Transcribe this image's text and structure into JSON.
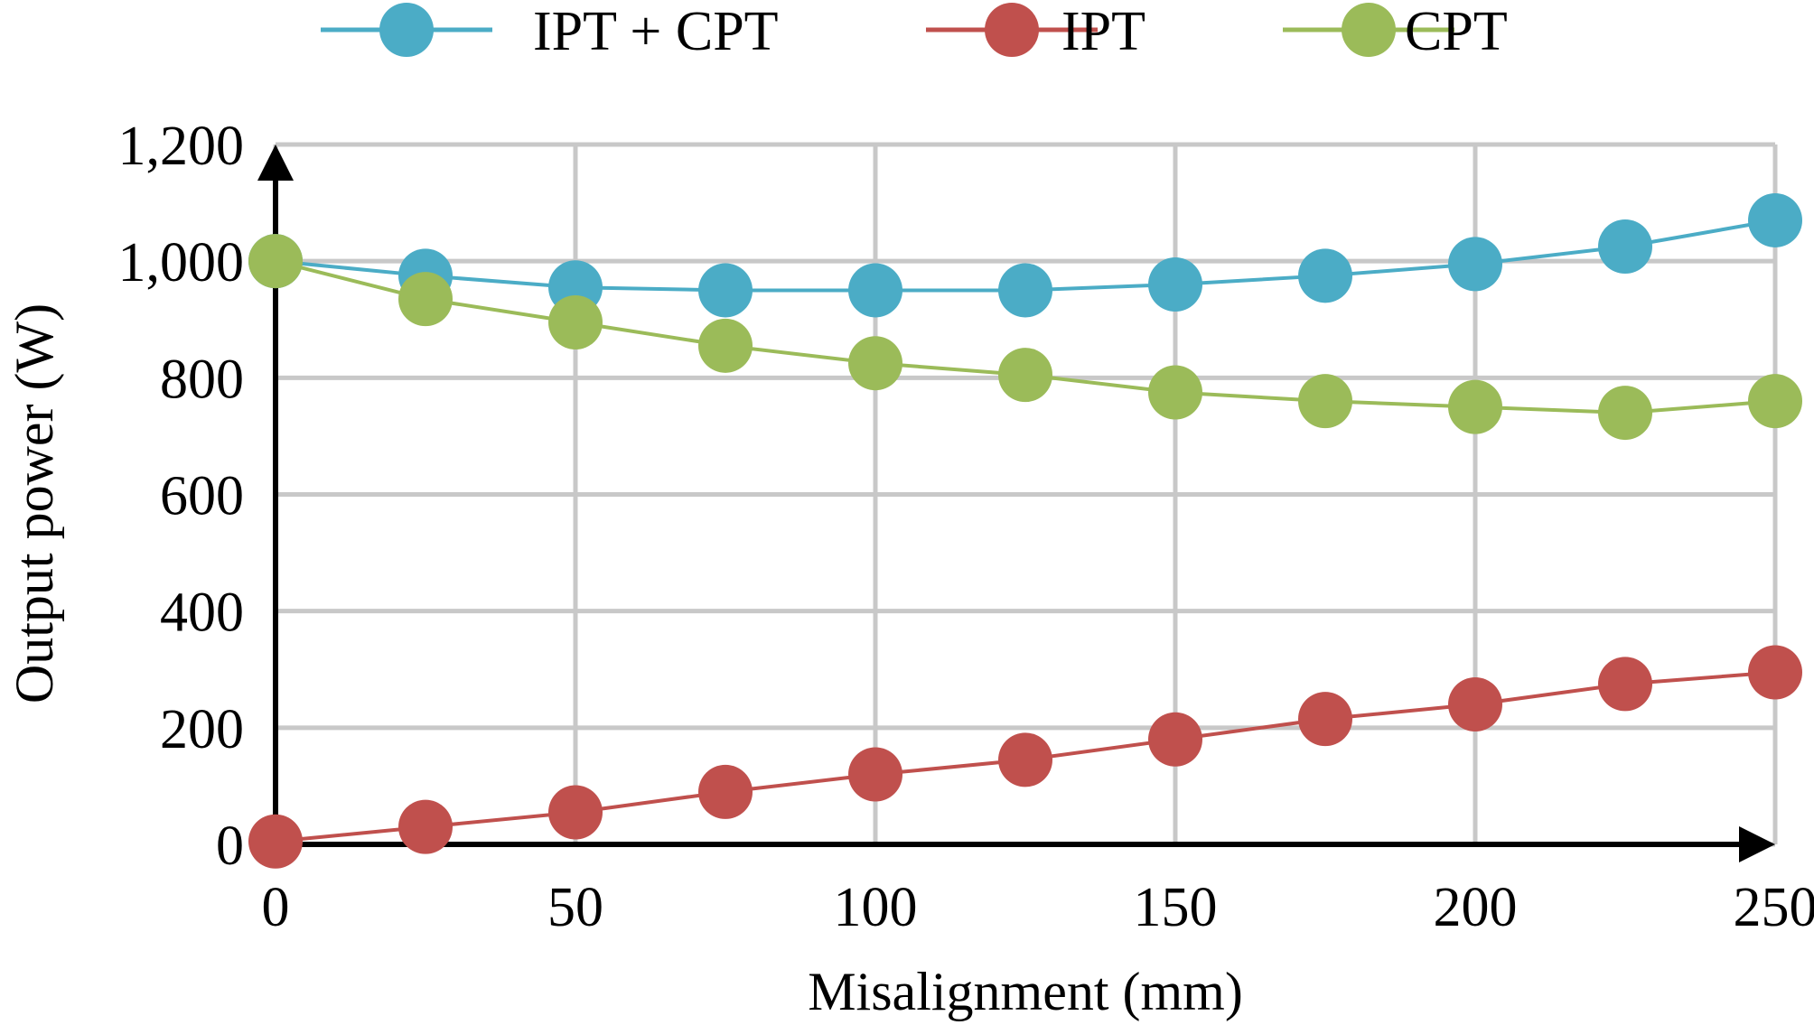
{
  "chart_data": {
    "type": "line",
    "title": "",
    "xlabel": "Misalignment (mm)",
    "ylabel": "Output power (W)",
    "x": [
      0,
      25,
      50,
      75,
      100,
      125,
      150,
      175,
      200,
      225,
      250
    ],
    "xlim": [
      0,
      250
    ],
    "ylim": [
      0,
      1200
    ],
    "xticks": [
      0,
      50,
      100,
      150,
      200,
      250
    ],
    "xtick_labels": [
      "0",
      "50",
      "100",
      "150",
      "200",
      "250"
    ],
    "yticks": [
      0,
      200,
      400,
      600,
      800,
      1000,
      1200
    ],
    "ytick_labels": [
      "0",
      "200",
      "400",
      "600",
      "800",
      "1,000",
      "1,200"
    ],
    "grid": true,
    "legend_position": "top",
    "series": [
      {
        "name": "IPT + CPT",
        "color": "#4bacc6",
        "values": [
          1000,
          975,
          955,
          950,
          950,
          950,
          960,
          975,
          995,
          1025,
          1070
        ]
      },
      {
        "name": "IPT",
        "color": "#c0504d",
        "values": [
          5,
          30,
          55,
          90,
          120,
          145,
          180,
          215,
          240,
          275,
          295
        ]
      },
      {
        "name": "CPT",
        "color": "#9bbb59",
        "values": [
          1000,
          935,
          895,
          855,
          825,
          805,
          775,
          760,
          750,
          740,
          760
        ]
      }
    ]
  }
}
